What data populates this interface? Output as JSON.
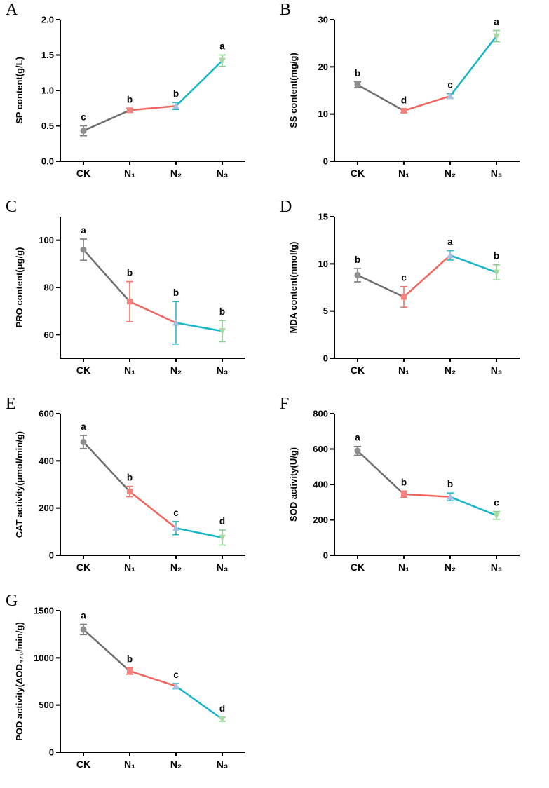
{
  "figure": {
    "description": "Seven-panel line figure (A-G) of physiological and enzyme measurements under CK and three N treatments, with SD error bars and significance letters"
  },
  "colors": {
    "background": "#ffffff",
    "axis": "#000000",
    "text": "#000000",
    "segments": [
      "#6e6e6e",
      "#f2655e",
      "#16b6c8"
    ],
    "markers": [
      "#8f8f8f",
      "#f4837d",
      "#a9c0e4",
      "#a9d8a1"
    ],
    "errors": [
      "#7a7a7a",
      "#f2756d",
      "#2cb8c9",
      "#86cf8b"
    ]
  },
  "style": {
    "marker_shapes": [
      "circle",
      "square",
      "triangle-up",
      "triangle-down"
    ]
  },
  "chart_data": [
    {
      "panel": "A",
      "type": "line",
      "categories": [
        "CK",
        "N₁",
        "N₂",
        "N₃"
      ],
      "values": [
        0.43,
        0.72,
        0.78,
        1.42
      ],
      "errors": [
        0.07,
        0.03,
        0.05,
        0.08
      ],
      "sig_letters": [
        "c",
        "b",
        "b",
        "a"
      ],
      "ylabel": "SP content(g/L)",
      "xlabel": "",
      "ylim": [
        0,
        2
      ],
      "yticks": [
        0,
        0.5,
        1,
        1.5,
        2
      ],
      "ytick_labels": [
        "0.0",
        "0.5",
        "1.0",
        "1.5",
        "2.0"
      ],
      "grid": false,
      "legend": "none"
    },
    {
      "panel": "B",
      "type": "line",
      "categories": [
        "CK",
        "N₁",
        "N₂",
        "N₃"
      ],
      "values": [
        16.2,
        10.7,
        13.8,
        26.5
      ],
      "errors": [
        0.6,
        0.4,
        0.5,
        1.2
      ],
      "sig_letters": [
        "b",
        "d",
        "c",
        "a"
      ],
      "ylabel": "SS content(mg/g)",
      "xlabel": "",
      "ylim": [
        0,
        30
      ],
      "yticks": [
        0,
        10,
        20,
        30
      ],
      "ytick_labels": [
        "0",
        "10",
        "20",
        "30"
      ],
      "grid": false,
      "legend": "none"
    },
    {
      "panel": "C",
      "type": "line",
      "categories": [
        "CK",
        "N₁",
        "N₂",
        "N₃"
      ],
      "values": [
        96,
        74,
        65,
        61.5
      ],
      "errors": [
        4.5,
        8.5,
        9,
        4.5
      ],
      "sig_letters": [
        "a",
        "b",
        "b",
        "b"
      ],
      "ylabel": "PRO content(μg/g)",
      "xlabel": "",
      "ylim": [
        50,
        110
      ],
      "yticks": [
        60,
        80,
        100
      ],
      "ytick_labels": [
        "60",
        "80",
        "100"
      ],
      "grid": false,
      "legend": "none"
    },
    {
      "panel": "D",
      "type": "line",
      "categories": [
        "CK",
        "N₁",
        "N₂",
        "N₃"
      ],
      "values": [
        8.8,
        6.5,
        10.9,
        9.1
      ],
      "errors": [
        0.7,
        1.1,
        0.5,
        0.8
      ],
      "sig_letters": [
        "b",
        "c",
        "a",
        "b"
      ],
      "ylabel": "MDA content(nmol/g)",
      "xlabel": "",
      "ylim": [
        0,
        15
      ],
      "yticks": [
        0,
        5,
        10,
        15
      ],
      "ytick_labels": [
        "0",
        "5",
        "10",
        "15"
      ],
      "grid": false,
      "legend": "none"
    },
    {
      "panel": "E",
      "type": "line",
      "categories": [
        "CK",
        "N₁",
        "N₂",
        "N₃"
      ],
      "values": [
        480,
        270,
        115,
        75
      ],
      "errors": [
        28,
        22,
        28,
        32
      ],
      "sig_letters": [
        "a",
        "b",
        "c",
        "d"
      ],
      "ylabel": "CAT activity(μmol/min/g)",
      "xlabel": "",
      "ylim": [
        0,
        600
      ],
      "yticks": [
        0,
        200,
        400,
        600
      ],
      "ytick_labels": [
        "0",
        "200",
        "400",
        "600"
      ],
      "grid": false,
      "legend": "none"
    },
    {
      "panel": "F",
      "type": "line",
      "categories": [
        "CK",
        "N₁",
        "N₂",
        "N₃"
      ],
      "values": [
        590,
        345,
        330,
        225
      ],
      "errors": [
        25,
        18,
        22,
        22
      ],
      "sig_letters": [
        "a",
        "b",
        "b",
        "c"
      ],
      "ylabel": "SOD activity(U/g)",
      "xlabel": "",
      "ylim": [
        0,
        800
      ],
      "yticks": [
        0,
        200,
        400,
        600,
        800
      ],
      "ytick_labels": [
        "0",
        "200",
        "400",
        "600",
        "800"
      ],
      "grid": false,
      "legend": "none"
    },
    {
      "panel": "G",
      "type": "line",
      "categories": [
        "CK",
        "N₁",
        "N₂",
        "N₃"
      ],
      "values": [
        1300,
        860,
        700,
        350
      ],
      "errors": [
        55,
        35,
        28,
        22
      ],
      "sig_letters": [
        "a",
        "b",
        "c",
        "d"
      ],
      "ylabel": "POD activity(ΔOD₄₇₀/min/g)",
      "xlabel": "",
      "ylim": [
        0,
        1500
      ],
      "yticks": [
        0,
        500,
        1000,
        1500
      ],
      "ytick_labels": [
        "0",
        "500",
        "1000",
        "1500"
      ],
      "grid": false,
      "legend": "none"
    }
  ]
}
